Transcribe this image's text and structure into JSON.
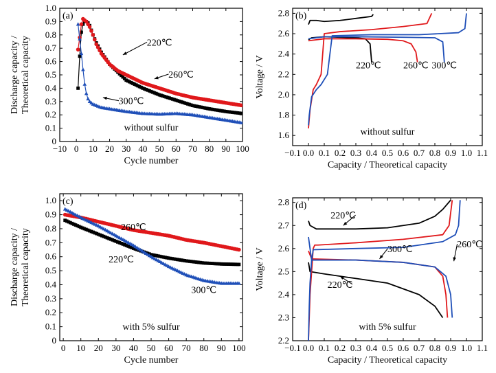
{
  "chart_data": [
    {
      "panel_label": "(a)",
      "type": "scatter",
      "xlabel": "Cycle number",
      "ylabel": [
        "Discharge capacity /",
        "Theoretical capacity"
      ],
      "xlim": [
        -10,
        100
      ],
      "ylim": [
        0,
        1.0
      ],
      "xticks": [
        "−10",
        "0",
        "10",
        "20",
        "30",
        "40",
        "50",
        "60",
        "70",
        "80",
        "90",
        "100"
      ],
      "yticks": [
        "0",
        "0.1",
        "0.2",
        "0.3",
        "0.4",
        "0.5",
        "0.6",
        "0.7",
        "0.8",
        "0.9",
        "1.0"
      ],
      "annotation": "without sulfur",
      "series": [
        {
          "name": "220℃",
          "color": "#000000",
          "marker": "square",
          "x": [
            1,
            2,
            3,
            4,
            5,
            6,
            7,
            8,
            10,
            12,
            15,
            20,
            25,
            30,
            40,
            50,
            60,
            70,
            80,
            90,
            100
          ],
          "y": [
            0.4,
            0.64,
            0.82,
            0.88,
            0.9,
            0.9,
            0.89,
            0.87,
            0.8,
            0.74,
            0.67,
            0.58,
            0.52,
            0.46,
            0.4,
            0.35,
            0.31,
            0.27,
            0.245,
            0.225,
            0.21
          ]
        },
        {
          "name": "260℃",
          "color": "#e0181b",
          "marker": "circle",
          "x": [
            1,
            2,
            3,
            4,
            5,
            6,
            7,
            8,
            10,
            12,
            15,
            20,
            25,
            30,
            40,
            50,
            60,
            70,
            80,
            90,
            100
          ],
          "y": [
            0.69,
            0.78,
            0.88,
            0.92,
            0.91,
            0.9,
            0.88,
            0.86,
            0.8,
            0.73,
            0.66,
            0.58,
            0.53,
            0.5,
            0.44,
            0.4,
            0.36,
            0.33,
            0.31,
            0.29,
            0.27
          ]
        },
        {
          "name": "300℃",
          "color": "#1f4fb8",
          "marker": "triangle",
          "x": [
            1,
            2,
            3,
            4,
            5,
            6,
            7,
            8,
            10,
            12,
            15,
            20,
            25,
            30,
            40,
            50,
            60,
            70,
            80,
            90,
            100
          ],
          "y": [
            0.88,
            0.77,
            0.66,
            0.54,
            0.43,
            0.36,
            0.32,
            0.3,
            0.28,
            0.27,
            0.255,
            0.245,
            0.235,
            0.225,
            0.21,
            0.205,
            0.21,
            0.2,
            0.18,
            0.16,
            0.14
          ]
        }
      ],
      "labels": [
        {
          "text": "220℃",
          "at": [
            50,
            0.72
          ],
          "arrow_to": [
            28,
            0.65
          ]
        },
        {
          "text": "260℃",
          "at": [
            63,
            0.48
          ],
          "arrow_to": [
            47,
            0.47
          ]
        },
        {
          "text": "300℃",
          "at": [
            33,
            0.28
          ],
          "arrow_to": [
            16,
            0.33
          ]
        }
      ]
    },
    {
      "panel_label": "(b)",
      "type": "line",
      "xlabel": "Capacity / Theoretical capacity",
      "ylabel": [
        "Voltage / V"
      ],
      "xlim": [
        -0.1,
        1.1
      ],
      "ylim": [
        1.5,
        2.85
      ],
      "xticks": [
        "−0.1",
        "0.0",
        "0.1",
        "0.2",
        "0.3",
        "0.4",
        "0.5",
        "0.6",
        "0.7",
        "0.8",
        "0.9",
        "1.0",
        "1.1"
      ],
      "yticks": [
        "1.6",
        "1.8",
        "2.0",
        "2.2",
        "2.4",
        "2.6",
        "2.8"
      ],
      "annotation": "without sulfur",
      "series": [
        {
          "name": "220℃",
          "color": "#000000",
          "discharge": {
            "x": [
              0,
              0.02,
              0.1,
              0.2,
              0.3,
              0.36,
              0.39,
              0.4
            ],
            "y": [
              2.54,
              2.56,
              2.57,
              2.565,
              2.56,
              2.55,
              2.5,
              2.32
            ]
          },
          "charge": {
            "x": [
              0,
              0.01,
              0.05,
              0.1,
              0.2,
              0.3,
              0.4,
              0.41
            ],
            "y": [
              2.69,
              2.73,
              2.73,
              2.72,
              2.73,
              2.75,
              2.77,
              2.79
            ]
          }
        },
        {
          "name": "260℃",
          "color": "#e0181b",
          "discharge": {
            "x": [
              0,
              0.1,
              0.3,
              0.5,
              0.6,
              0.65,
              0.68,
              0.69
            ],
            "y": [
              2.53,
              2.55,
              2.55,
              2.545,
              2.53,
              2.5,
              2.42,
              2.32
            ]
          },
          "charge": {
            "x": [
              0,
              0.01,
              0.03,
              0.05,
              0.08,
              0.1,
              0.2,
              0.4,
              0.6,
              0.75,
              0.78
            ],
            "y": [
              1.67,
              1.85,
              2.05,
              2.1,
              2.2,
              2.6,
              2.62,
              2.64,
              2.67,
              2.7,
              2.8
            ]
          }
        },
        {
          "name": "300℃",
          "color": "#1f4fb8",
          "discharge": {
            "x": [
              0,
              0.1,
              0.3,
              0.6,
              0.8,
              0.85,
              0.86
            ],
            "y": [
              2.55,
              2.57,
              2.57,
              2.565,
              2.56,
              2.52,
              2.32
            ]
          },
          "charge": {
            "x": [
              0,
              0.005,
              0.02,
              0.05,
              0.08,
              0.12,
              0.15,
              0.4,
              0.7,
              0.95,
              0.99,
              1.0
            ],
            "y": [
              1.7,
              1.8,
              1.98,
              2.05,
              2.1,
              2.2,
              2.58,
              2.59,
              2.59,
              2.61,
              2.65,
              2.8
            ]
          }
        }
      ],
      "labels": [
        {
          "text": "220℃",
          "at": [
            0.38,
            2.26
          ]
        },
        {
          "text": "260℃",
          "at": [
            0.68,
            2.26
          ]
        },
        {
          "text": "300℃",
          "at": [
            0.86,
            2.26
          ]
        }
      ]
    },
    {
      "panel_label": "(c)",
      "type": "scatter",
      "xlabel": "Cycle number",
      "ylabel": [
        "Discharge capacity /",
        "Theoretical capacity"
      ],
      "xlim": [
        -2,
        102
      ],
      "ylim": [
        0,
        1.05
      ],
      "xticks": [
        "0",
        "10",
        "20",
        "30",
        "40",
        "50",
        "60",
        "70",
        "80",
        "90",
        "100"
      ],
      "yticks": [
        "0",
        "0.1",
        "0.2",
        "0.3",
        "0.4",
        "0.5",
        "0.6",
        "0.7",
        "0.8",
        "0.9",
        "1.0"
      ],
      "annotation": "with 5% sulfur",
      "series": [
        {
          "name": "220℃",
          "color": "#000000",
          "marker": "square",
          "x": [
            1,
            10,
            20,
            30,
            40,
            50,
            60,
            70,
            80,
            90,
            100
          ],
          "y": [
            0.86,
            0.81,
            0.76,
            0.71,
            0.66,
            0.615,
            0.59,
            0.57,
            0.555,
            0.548,
            0.545
          ]
        },
        {
          "name": "260℃",
          "color": "#e0181b",
          "marker": "circle",
          "x": [
            1,
            10,
            20,
            30,
            40,
            50,
            60,
            70,
            80,
            90,
            100
          ],
          "y": [
            0.9,
            0.88,
            0.85,
            0.82,
            0.79,
            0.77,
            0.75,
            0.72,
            0.7,
            0.675,
            0.65
          ]
        },
        {
          "name": "300℃",
          "color": "#1f4fb8",
          "marker": "triangle",
          "x": [
            1,
            10,
            20,
            30,
            40,
            50,
            60,
            70,
            80,
            90,
            100
          ],
          "y": [
            0.94,
            0.88,
            0.82,
            0.75,
            0.68,
            0.6,
            0.53,
            0.47,
            0.43,
            0.41,
            0.41
          ]
        }
      ],
      "labels": [
        {
          "text": "260℃",
          "at": [
            40,
            0.79
          ]
        },
        {
          "text": "220℃",
          "at": [
            33,
            0.56
          ]
        },
        {
          "text": "300℃",
          "at": [
            80,
            0.34
          ]
        }
      ]
    },
    {
      "panel_label": "(d)",
      "type": "line",
      "xlabel": "Capacity / Theoretical capacity",
      "ylabel": [
        "Voltage / V"
      ],
      "xlim": [
        -0.1,
        1.1
      ],
      "ylim": [
        2.2,
        2.82
      ],
      "xticks": [
        "−0.1",
        "0.0",
        "0.1",
        "0.2",
        "0.3",
        "0.4",
        "0.5",
        "0.6",
        "0.7",
        "0.8",
        "0.9",
        "1.0",
        "1.1"
      ],
      "yticks": [
        "2.2",
        "2.3",
        "2.4",
        "2.5",
        "2.6",
        "2.7",
        "2.8"
      ],
      "annotation": "with 5% sulfur",
      "series": [
        {
          "name": "220℃",
          "color": "#000000",
          "discharge": {
            "x": [
              0,
              0.01,
              0.1,
              0.3,
              0.5,
              0.7,
              0.8,
              0.84,
              0.85
            ],
            "y": [
              2.54,
              2.5,
              2.49,
              2.47,
              2.45,
              2.4,
              2.35,
              2.31,
              2.3
            ]
          },
          "charge": {
            "x": [
              0,
              0.01,
              0.05,
              0.3,
              0.5,
              0.7,
              0.8,
              0.85,
              0.9
            ],
            "y": [
              2.72,
              2.7,
              2.685,
              2.685,
              2.69,
              2.71,
              2.74,
              2.77,
              2.81
            ]
          }
        },
        {
          "name": "260℃",
          "color": "#e0181b",
          "discharge": {
            "x": [
              0,
              0.02,
              0.3,
              0.6,
              0.8,
              0.85,
              0.87,
              0.88
            ],
            "y": [
              2.59,
              2.555,
              2.55,
              2.54,
              2.52,
              2.48,
              2.4,
              2.3
            ]
          },
          "charge": {
            "x": [
              0,
              0.01,
              0.02,
              0.03,
              0.04,
              0.06,
              0.3,
              0.6,
              0.85,
              0.89,
              0.91
            ],
            "y": [
              2.2,
              2.4,
              2.5,
              2.6,
              2.615,
              2.615,
              2.625,
              2.64,
              2.66,
              2.7,
              2.81
            ]
          }
        },
        {
          "name": "300℃",
          "color": "#1f4fb8",
          "discharge": {
            "x": [
              0,
              0.02,
              0.3,
              0.6,
              0.8,
              0.87,
              0.9,
              0.91
            ],
            "y": [
              2.65,
              2.55,
              2.55,
              2.54,
              2.52,
              2.48,
              2.4,
              2.3
            ]
          },
          "charge": {
            "x": [
              0,
              0.005,
              0.01,
              0.02,
              0.03,
              0.3,
              0.6,
              0.85,
              0.93,
              0.95,
              0.96
            ],
            "y": [
              2.2,
              2.35,
              2.45,
              2.55,
              2.595,
              2.6,
              2.605,
              2.63,
              2.66,
              2.7,
              2.81
            ]
          }
        }
      ],
      "labels": [
        {
          "text": "220℃",
          "at": [
            0.22,
            2.73
          ],
          "arrow_to": [
            0.22,
            2.7
          ]
        },
        {
          "text": "300℃",
          "at": [
            0.58,
            2.585
          ],
          "arrow_to": [
            0.45,
            2.555
          ]
        },
        {
          "text": "260℃",
          "at": [
            1.02,
            2.605
          ],
          "arrow_to": [
            0.92,
            2.545
          ]
        },
        {
          "text": "220℃",
          "at": [
            0.2,
            2.43
          ],
          "arrow_to": [
            0.2,
            2.48
          ]
        }
      ]
    }
  ]
}
